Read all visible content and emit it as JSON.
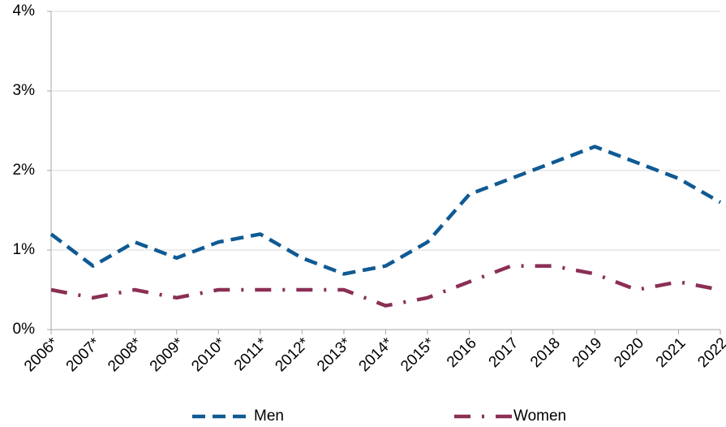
{
  "chart_data": {
    "type": "line",
    "categories": [
      "2006*",
      "2007*",
      "2008*",
      "2009*",
      "2010*",
      "2011*",
      "2012*",
      "2013*",
      "2014*",
      "2015*",
      "2016",
      "2017",
      "2018",
      "2019",
      "2020",
      "2021",
      "2022"
    ],
    "series": [
      {
        "name": "Men",
        "color": "#0f5a94",
        "dash": "dashed",
        "values": [
          1.2,
          0.8,
          1.1,
          0.9,
          1.1,
          1.2,
          0.9,
          0.7,
          0.8,
          1.1,
          1.7,
          1.9,
          2.1,
          2.3,
          2.1,
          1.9,
          1.6
        ]
      },
      {
        "name": "Women",
        "color": "#8b2f55",
        "dash": "dashdot",
        "values": [
          0.5,
          0.4,
          0.5,
          0.4,
          0.5,
          0.5,
          0.5,
          0.5,
          0.3,
          0.4,
          0.6,
          0.8,
          0.8,
          0.7,
          0.5,
          0.6,
          0.5
        ]
      }
    ],
    "ylim": [
      0,
      4
    ],
    "yticks": [
      {
        "value": 0,
        "label": "0%"
      },
      {
        "value": 1,
        "label": "1%"
      },
      {
        "value": 2,
        "label": "2%"
      },
      {
        "value": 3,
        "label": "3%"
      },
      {
        "value": 4,
        "label": "4%"
      }
    ],
    "grid": true,
    "legend": "bottom"
  }
}
